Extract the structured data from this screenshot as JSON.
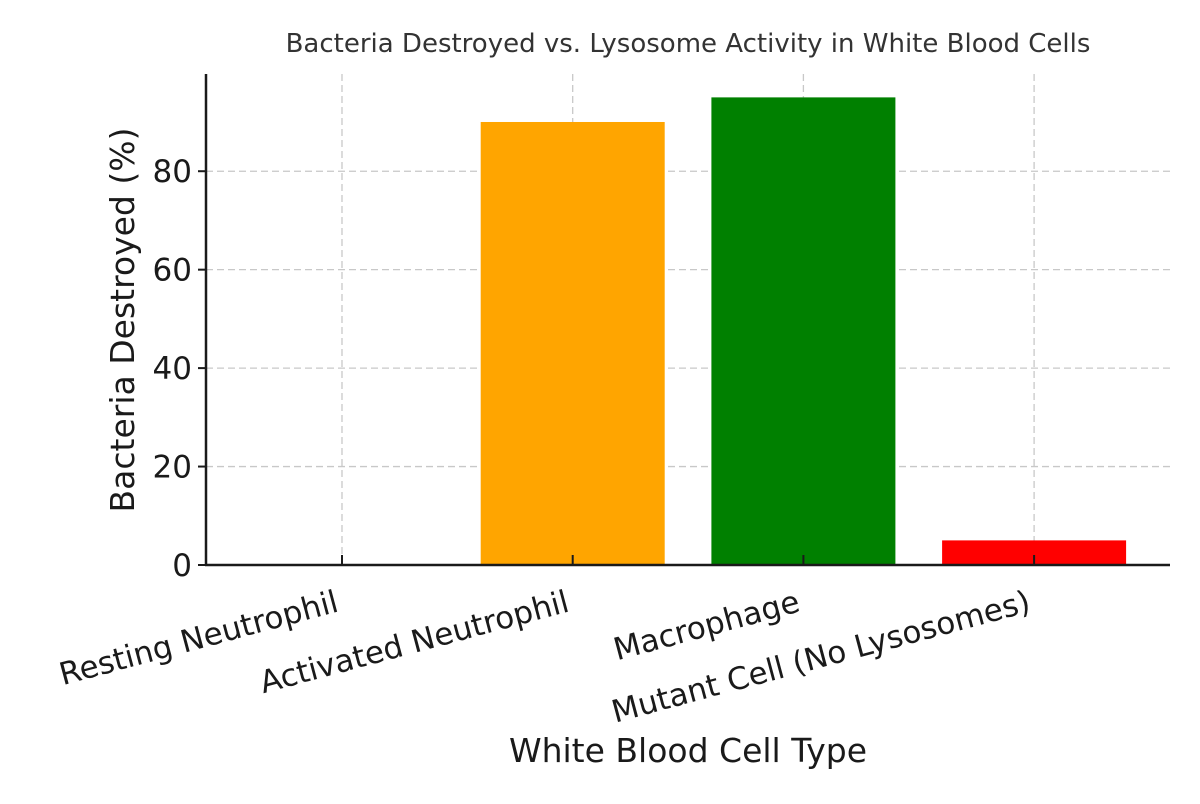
{
  "chart_data": {
    "type": "bar",
    "title": "Bacteria Destroyed vs. Lysosome Activity in White Blood Cells",
    "xlabel": "White Blood Cell Type",
    "ylabel": "Bacteria Destroyed (%)",
    "categories": [
      "Resting Neutrophil",
      "Activated Neutrophil",
      "Macrophage",
      "Mutant Cell (No Lysosomes)"
    ],
    "values": [
      0,
      90,
      95,
      5
    ],
    "colors": [
      "#1f77b4",
      "#ffa500",
      "#008000",
      "#ff0000"
    ],
    "yticks": [
      0,
      20,
      40,
      60,
      80
    ],
    "ylim": [
      0,
      99.75
    ],
    "grid": true,
    "legend": "none"
  }
}
